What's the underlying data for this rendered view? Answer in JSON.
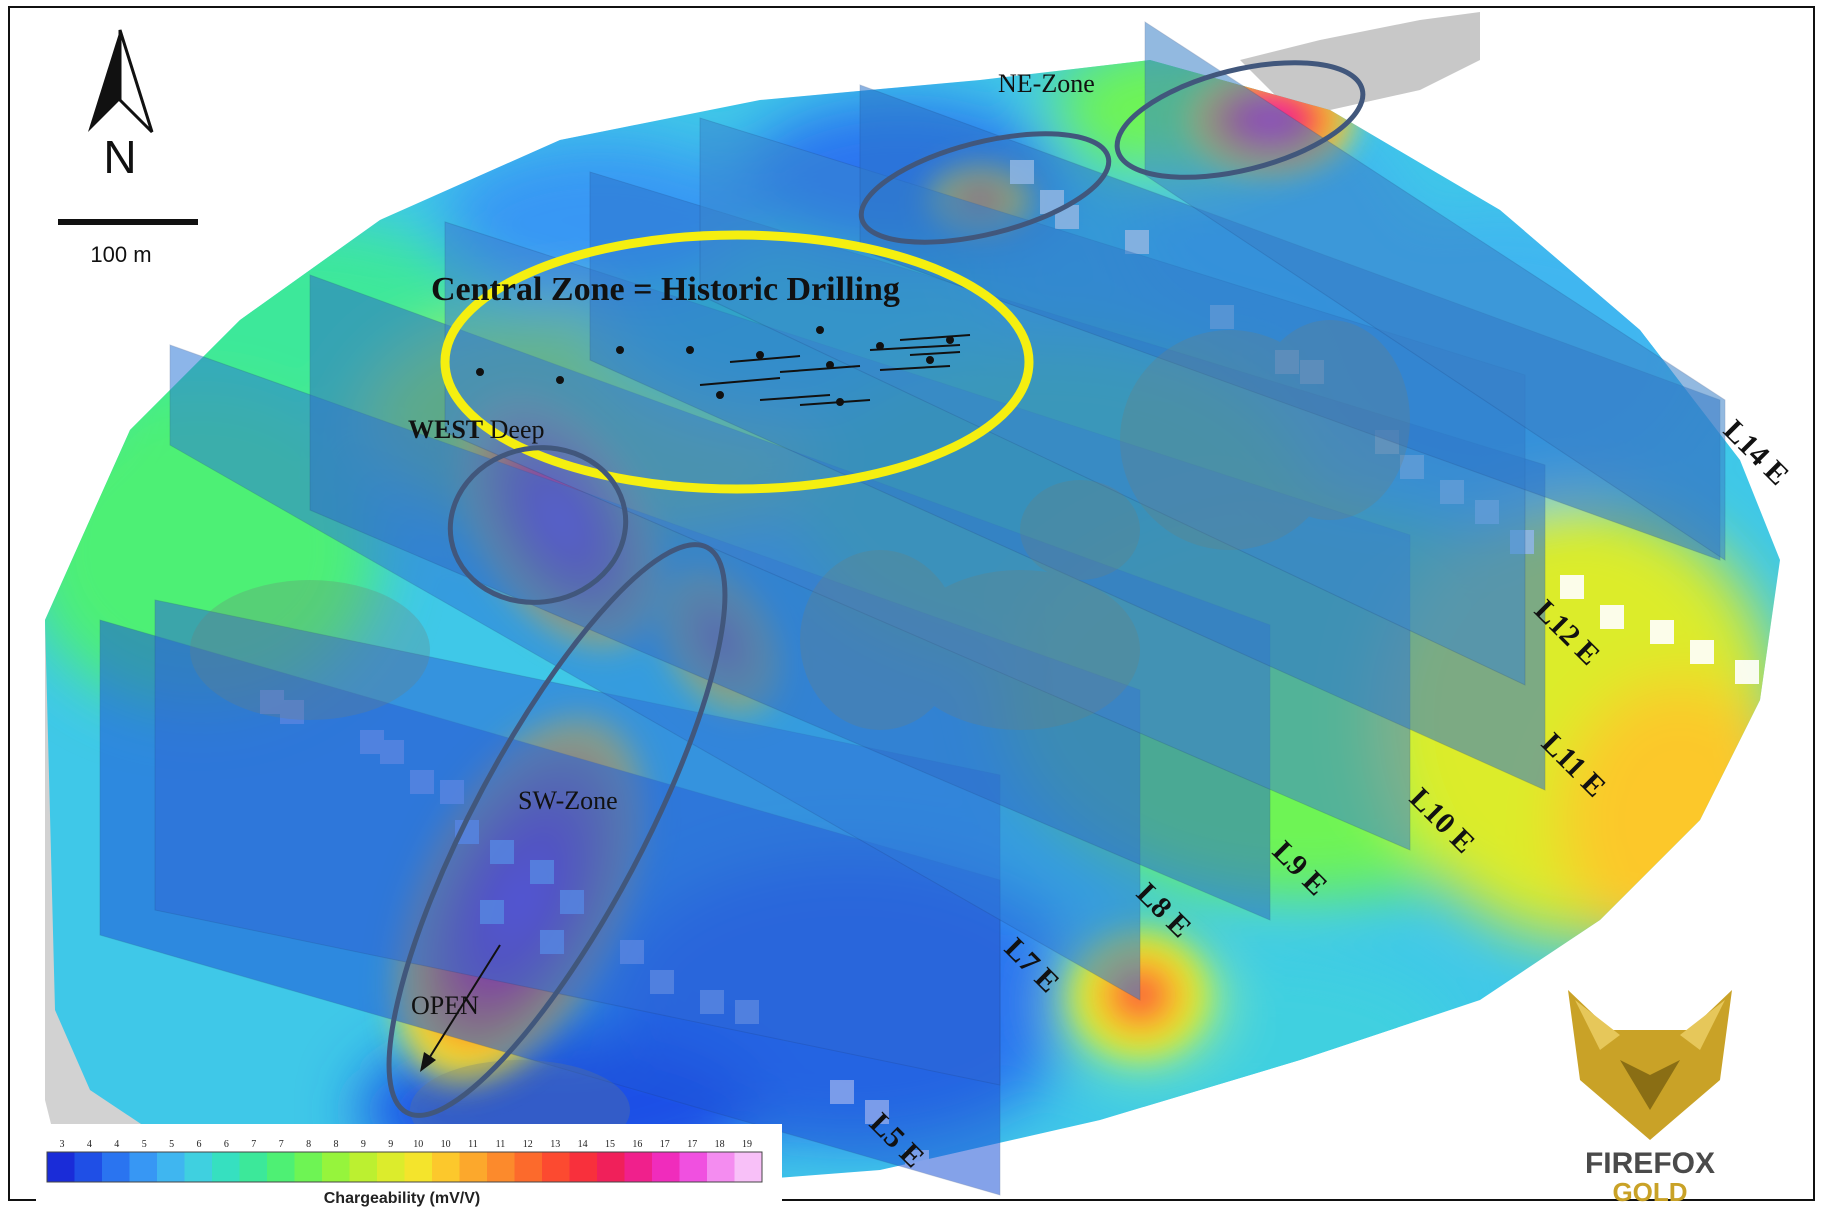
{
  "north_arrow": {
    "label": "N"
  },
  "scale_bar": {
    "label": "100 m"
  },
  "zones": {
    "central": "Central Zone = Historic Drilling",
    "ne": "NE-Zone",
    "west_bold": "WEST",
    "west_rest": " Deep",
    "sw": "SW-Zone",
    "open": "OPEN"
  },
  "lines": [
    {
      "label": "L5 E"
    },
    {
      "label": "L7 E"
    },
    {
      "label": "L8 E"
    },
    {
      "label": "L9 E"
    },
    {
      "label": "L10 E"
    },
    {
      "label": "L11 E"
    },
    {
      "label": "L12 E"
    },
    {
      "label": "L14 E"
    }
  ],
  "legend": {
    "title": "Chargeability (mV/V)",
    "ticks": [
      "3",
      "4",
      "4",
      "5",
      "5",
      "6",
      "6",
      "7",
      "7",
      "8",
      "8",
      "9",
      "9",
      "10",
      "10",
      "11",
      "11",
      "12",
      "13",
      "14",
      "15",
      "16",
      "17",
      "17",
      "18",
      "19"
    ],
    "colors": [
      "#1a2cd8",
      "#1f4fe6",
      "#2a74f0",
      "#3797f4",
      "#3fb6f0",
      "#3fd0e0",
      "#36e0c0",
      "#3ce89a",
      "#4ef074",
      "#6ef454",
      "#96f43c",
      "#bcf030",
      "#dcec2c",
      "#f4e42c",
      "#fcc82c",
      "#fca82c",
      "#fc8a2c",
      "#fc6a2c",
      "#fc4a30",
      "#f8303c",
      "#f0205a",
      "#f0208c",
      "#f02cbc",
      "#f050e0",
      "#f48cf0",
      "#f8c0f8"
    ]
  },
  "logo": {
    "name": "FIREFOX",
    "sub": "GOLD",
    "accent": "#c9a227"
  }
}
